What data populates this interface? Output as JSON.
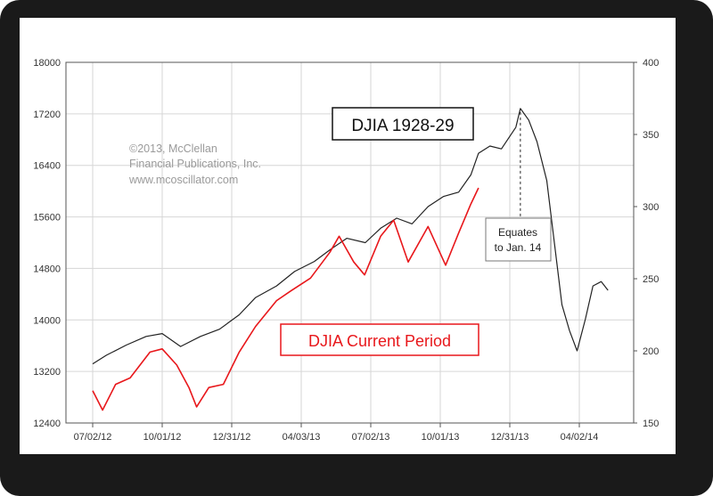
{
  "chart_data": {
    "type": "line",
    "title": "",
    "xlabel": "",
    "ylabel": "",
    "x_ticks": [
      "07/02/12",
      "10/01/12",
      "12/31/12",
      "04/03/13",
      "07/02/13",
      "10/01/13",
      "12/31/13",
      "04/02/14"
    ],
    "y_left": {
      "ticks": [
        12400,
        13200,
        14000,
        14800,
        15600,
        16400,
        17200,
        18000
      ],
      "range": [
        12400,
        18000
      ]
    },
    "y_right": {
      "ticks": [
        150,
        200,
        250,
        300,
        350,
        400
      ],
      "range": [
        150,
        400
      ]
    },
    "grid": true,
    "series": [
      {
        "name": "DJIA 1928-29",
        "axis": "right",
        "color": "#222222",
        "x": [
          "2012-07-02",
          "2012-07-20",
          "2012-08-15",
          "2012-09-10",
          "2012-10-01",
          "2012-10-25",
          "2012-11-20",
          "2012-12-15",
          "2013-01-10",
          "2013-02-01",
          "2013-03-01",
          "2013-03-25",
          "2013-04-20",
          "2013-05-10",
          "2013-06-01",
          "2013-06-25",
          "2013-07-15",
          "2013-08-05",
          "2013-08-25",
          "2013-09-15",
          "2013-10-05",
          "2013-10-25",
          "2013-11-10",
          "2013-11-20",
          "2013-12-05",
          "2013-12-20",
          "2014-01-08",
          "2014-01-14",
          "2014-01-25",
          "2014-02-05",
          "2014-02-18",
          "2014-02-28",
          "2014-03-10",
          "2014-03-20",
          "2014-03-30",
          "2014-04-10",
          "2014-04-20",
          "2014-05-01",
          "2014-05-10"
        ],
        "values": [
          191,
          197,
          204,
          210,
          212,
          203,
          210,
          215,
          225,
          237,
          245,
          255,
          262,
          270,
          278,
          275,
          285,
          292,
          288,
          300,
          307,
          310,
          322,
          337,
          342,
          340,
          355,
          368,
          360,
          345,
          318,
          275,
          232,
          214,
          200,
          222,
          245,
          248,
          242
        ]
      },
      {
        "name": "DJIA Current Period",
        "axis": "left",
        "color": "#e8171b",
        "x": [
          "2012-07-02",
          "2012-07-15",
          "2012-08-01",
          "2012-08-20",
          "2012-09-15",
          "2012-10-01",
          "2012-10-20",
          "2012-11-05",
          "2012-11-15",
          "2012-12-01",
          "2012-12-20",
          "2013-01-10",
          "2013-02-01",
          "2013-03-01",
          "2013-03-20",
          "2013-04-15",
          "2013-05-10",
          "2013-05-22",
          "2013-06-10",
          "2013-06-24",
          "2013-07-15",
          "2013-08-01",
          "2013-08-20",
          "2013-09-15",
          "2013-10-08",
          "2013-10-25",
          "2013-11-10",
          "2013-11-20"
        ],
        "values": [
          12900,
          12600,
          13000,
          13100,
          13500,
          13550,
          13300,
          12950,
          12650,
          12950,
          13000,
          13500,
          13900,
          14300,
          14450,
          14650,
          15050,
          15300,
          14900,
          14700,
          15300,
          15550,
          14900,
          15450,
          14850,
          15350,
          15800,
          16050
        ]
      }
    ],
    "annotations": [
      {
        "text": "DJIA 1928-29",
        "style": "boxed"
      },
      {
        "text": "DJIA Current Period",
        "style": "boxed-red"
      },
      {
        "lines": [
          "Equates",
          "to Jan. 14"
        ],
        "x": "2014-01-14"
      }
    ],
    "credit": [
      "©2013, McClellan",
      "Financial Publications, Inc.",
      "www.mcoscillator.com"
    ]
  }
}
